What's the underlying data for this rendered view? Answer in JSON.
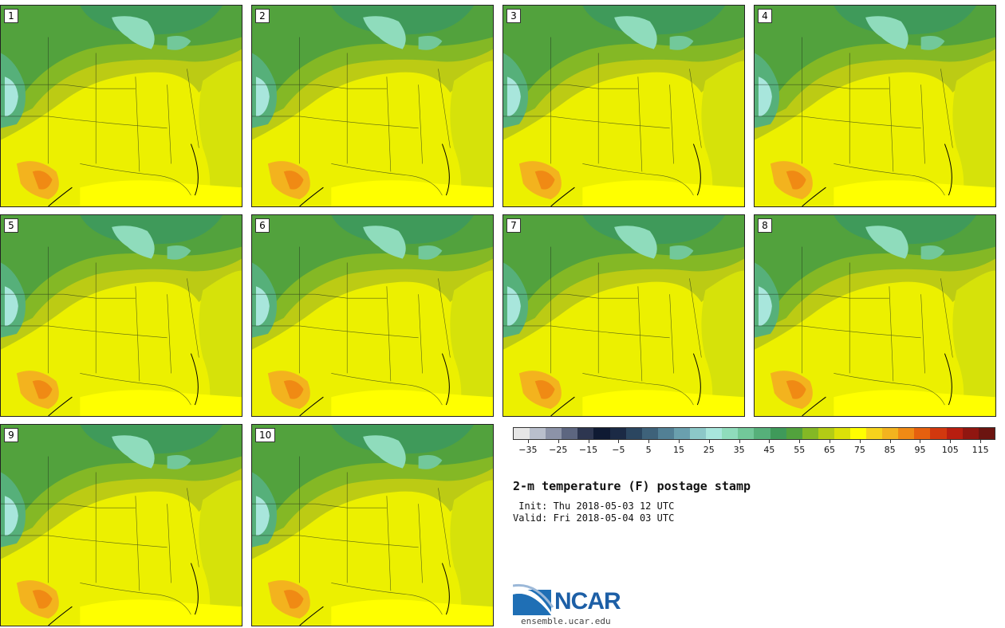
{
  "panels": [
    {
      "label": "1"
    },
    {
      "label": "2"
    },
    {
      "label": "3"
    },
    {
      "label": "4"
    },
    {
      "label": "5"
    },
    {
      "label": "6"
    },
    {
      "label": "7"
    },
    {
      "label": "8"
    },
    {
      "label": "9"
    },
    {
      "label": "10"
    }
  ],
  "colorbar": {
    "colors": [
      "#e6e6e6",
      "#b9bfcc",
      "#8c93a8",
      "#5d6680",
      "#2d3650",
      "#0f1a33",
      "#1b2a45",
      "#2b4660",
      "#3e627a",
      "#528095",
      "#6aa0ae",
      "#8cc8c8",
      "#a8e6dc",
      "#8fdcbc",
      "#72c89a",
      "#56b07a",
      "#3f9a5a",
      "#52a23d",
      "#84b825",
      "#b3cc15",
      "#dbe108",
      "#ffff00",
      "#f6d31c",
      "#f3b31e",
      "#f08a14",
      "#e6600e",
      "#d2380e",
      "#b81e10",
      "#901610",
      "#6b1410"
    ],
    "tick_labels": [
      "−35",
      "−25",
      "−15",
      "−5",
      "5",
      "15",
      "25",
      "35",
      "45",
      "55",
      "65",
      "75",
      "85",
      "95",
      "105",
      "115"
    ],
    "tick_values": [
      -35,
      -25,
      -15,
      -5,
      5,
      15,
      25,
      35,
      45,
      55,
      65,
      75,
      85,
      95,
      105,
      115
    ],
    "min": -40,
    "max": 120
  },
  "title": "2-m temperature (F) postage stamp",
  "init": " Init: Thu 2018-05-03 12 UTC",
  "valid": "Valid: Fri 2018-05-04 03 UTC",
  "logo_text": "NCAR",
  "url": "ensemble.ucar.edu"
}
